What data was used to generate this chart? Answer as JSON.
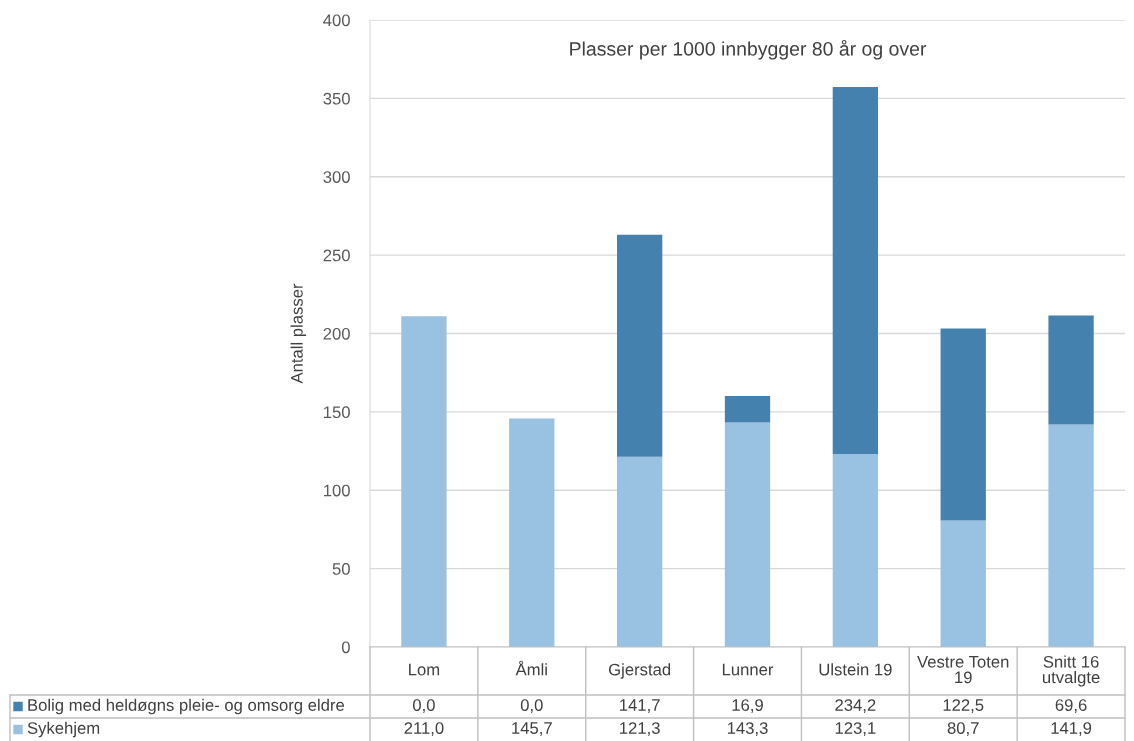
{
  "chart_data": {
    "type": "bar",
    "title": "Plasser per 1000 innbygger 80 år og over",
    "ylabel": "Antall plasser",
    "categories": [
      "Lom",
      "Åmli",
      "Gjerstad",
      "Lunner",
      "Ulstein 19",
      "Vestre Toten 19",
      "Snitt 16 utvalgte"
    ],
    "stacked": true,
    "series": [
      {
        "name": "Sykehjem",
        "color": "#98c1e2",
        "values": [
          211.0,
          145.7,
          121.3,
          143.3,
          123.1,
          80.7,
          141.9
        ],
        "value_labels": [
          "211,0",
          "145,7",
          "121,3",
          "143,3",
          "123,1",
          "80,7",
          "141,9"
        ]
      },
      {
        "name": "Bolig med heldøgns pleie- og omsorg eldre",
        "color": "#4581ae",
        "values": [
          0.0,
          0.0,
          141.7,
          16.9,
          234.2,
          122.5,
          69.6
        ],
        "value_labels": [
          "0,0",
          "0,0",
          "141,7",
          "16,9",
          "234,2",
          "122,5",
          "69,6"
        ]
      }
    ],
    "ylim": [
      0,
      400
    ],
    "yticks": [
      0,
      50,
      100,
      150,
      200,
      250,
      300,
      350,
      400
    ],
    "grid": "y",
    "legend": "bottom"
  }
}
